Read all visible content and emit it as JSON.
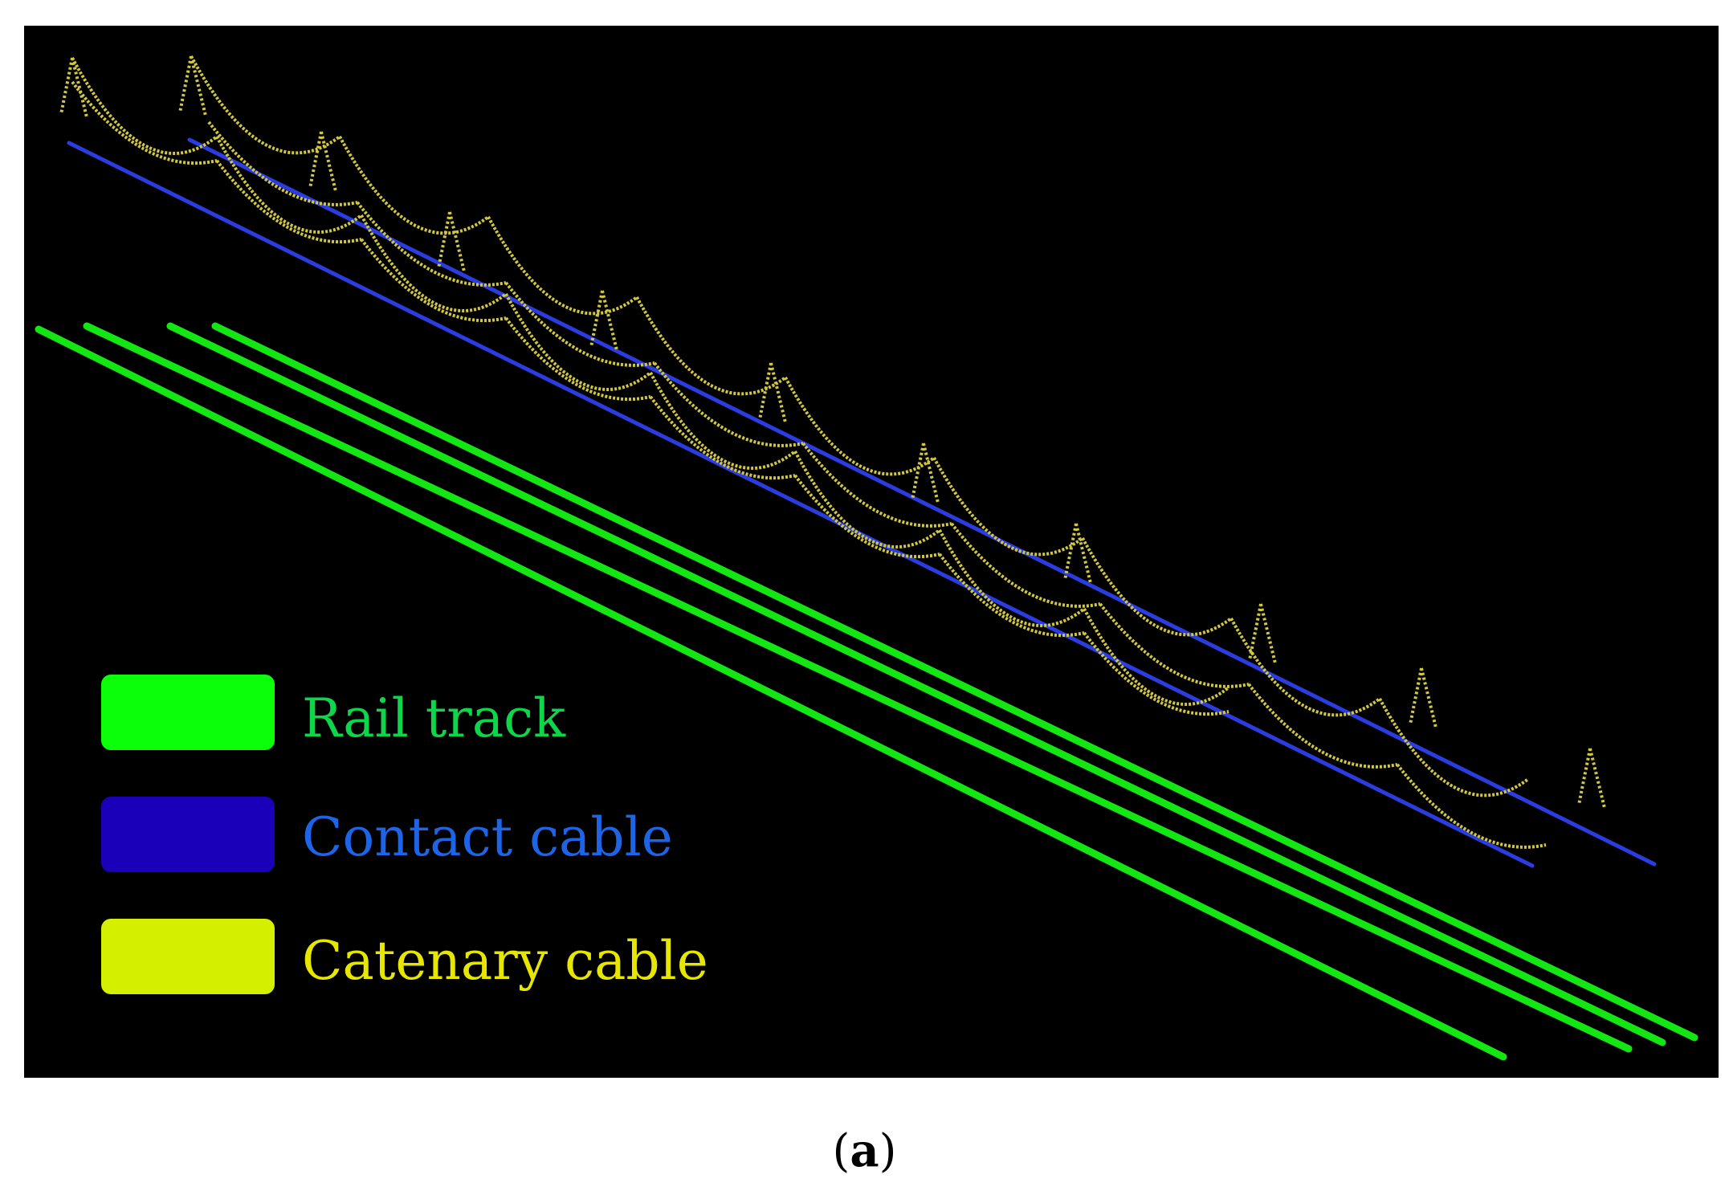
{
  "figure": {
    "caption": {
      "open_paren": "(",
      "letter": "a",
      "close_paren": ")"
    }
  },
  "legend": {
    "items": [
      {
        "label": "Rail track",
        "swatch_color": "#0BFF0B",
        "text_color": "#0ED64A"
      },
      {
        "label": "Contact cable",
        "swatch_color": "#1A00B8",
        "text_color": "#1E64E6"
      },
      {
        "label": "Catenary cable",
        "swatch_color": "#D4F000",
        "text_color": "#E6E600"
      }
    ]
  },
  "colors": {
    "background": "#000000",
    "rail": "#14E614",
    "contact": "#2B3CE0",
    "catenary": "#D2C83C"
  }
}
